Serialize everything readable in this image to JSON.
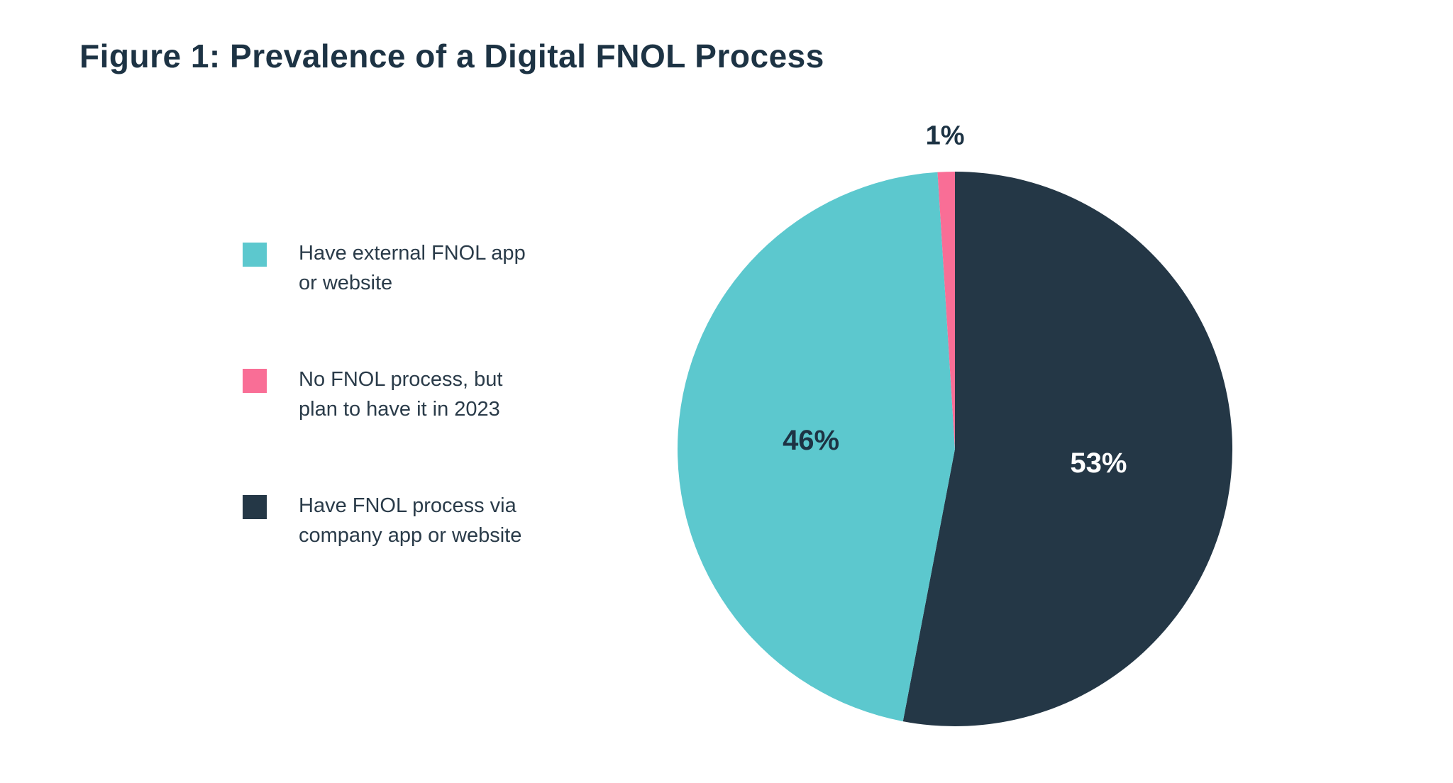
{
  "title": "Figure 1: Prevalence of a Digital FNOL Process",
  "legend": {
    "items": [
      {
        "color": "#5CC8CE",
        "line1": "Have external FNOL app",
        "line2": "or website"
      },
      {
        "color": "#F96E96",
        "line1": "No FNOL process, but",
        "line2": "plan to have it in 2023"
      },
      {
        "color": "#243746",
        "line1": "Have FNOL process via",
        "line2": "company app or website"
      }
    ]
  },
  "chart_data": {
    "type": "pie",
    "title": "Figure 1: Prevalence of a Digital FNOL Process",
    "legend_position": "left",
    "start_angle_deg": 0,
    "direction": "clockwise",
    "slices": [
      {
        "label": "Have FNOL process via company app or website",
        "value": 53,
        "pct_label": "53%",
        "color": "#243746",
        "label_color": "#FFFFFF",
        "label_inside": true
      },
      {
        "label": "Have external FNOL app or website",
        "value": 46,
        "pct_label": "46%",
        "color": "#5CC8CE",
        "label_color": "#1D3344",
        "label_inside": true
      },
      {
        "label": "No FNOL process, but plan to have it in 2023",
        "value": 1,
        "pct_label": "1%",
        "color": "#F96E96",
        "label_color": "#1D3344",
        "label_inside": false
      }
    ]
  }
}
